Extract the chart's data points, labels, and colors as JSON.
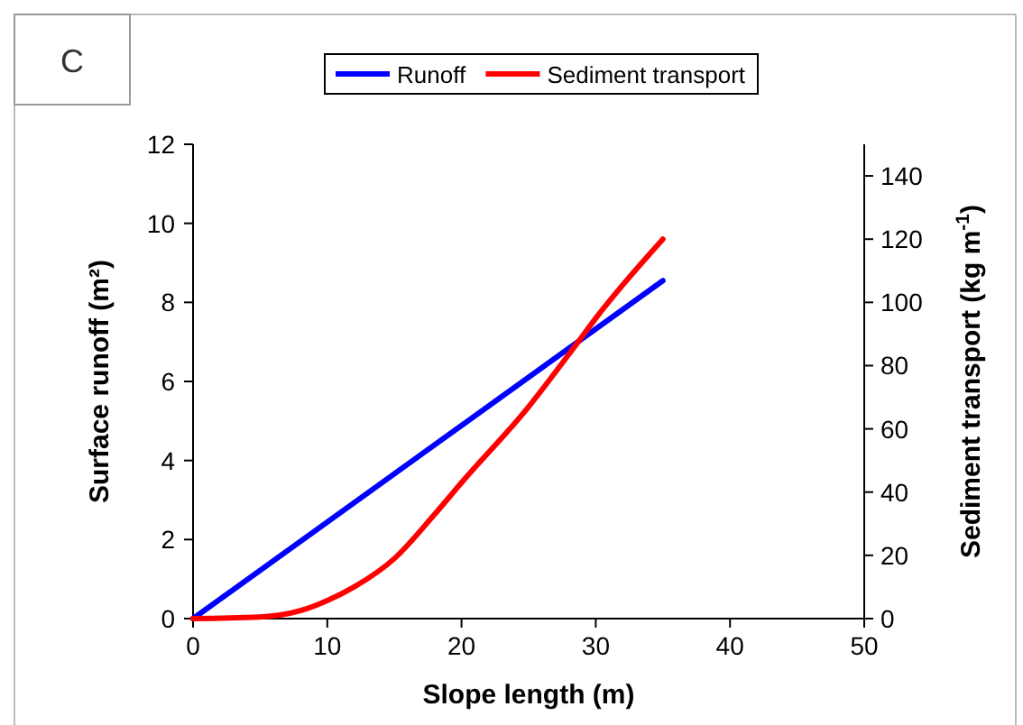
{
  "chart_data": {
    "type": "line",
    "title": "C",
    "xlabel": "Slope length (m)",
    "ylabel": "Surface runoff (m²)",
    "y2label": "Sediment transport (kg m$^{-1}$)",
    "xlim": [
      0,
      50
    ],
    "xticks": [
      0,
      10,
      20,
      30,
      40,
      50
    ],
    "ylim": [
      0,
      12
    ],
    "yticks": [
      0,
      2,
      4,
      6,
      8,
      10,
      12
    ],
    "y2lim": [
      0,
      150
    ],
    "y2ticks": [
      0,
      20,
      40,
      60,
      80,
      100,
      120,
      140
    ],
    "legend": "top",
    "grid": false,
    "series": [
      {
        "name": "Runoff",
        "color": "#0000ff",
        "x": [
          0,
          35
        ],
        "values": [
          0,
          8.55
        ]
      },
      {
        "name": "Sediment transport",
        "color": "#ff0000",
        "axis": "y2",
        "x": [
          0,
          5,
          8,
          10,
          12,
          15,
          18,
          20,
          25,
          28.6,
          30,
          35
        ],
        "values": [
          0,
          0.5,
          2.5,
          5.7,
          10,
          19,
          33,
          43,
          67,
          87,
          95,
          120
        ]
      }
    ]
  }
}
